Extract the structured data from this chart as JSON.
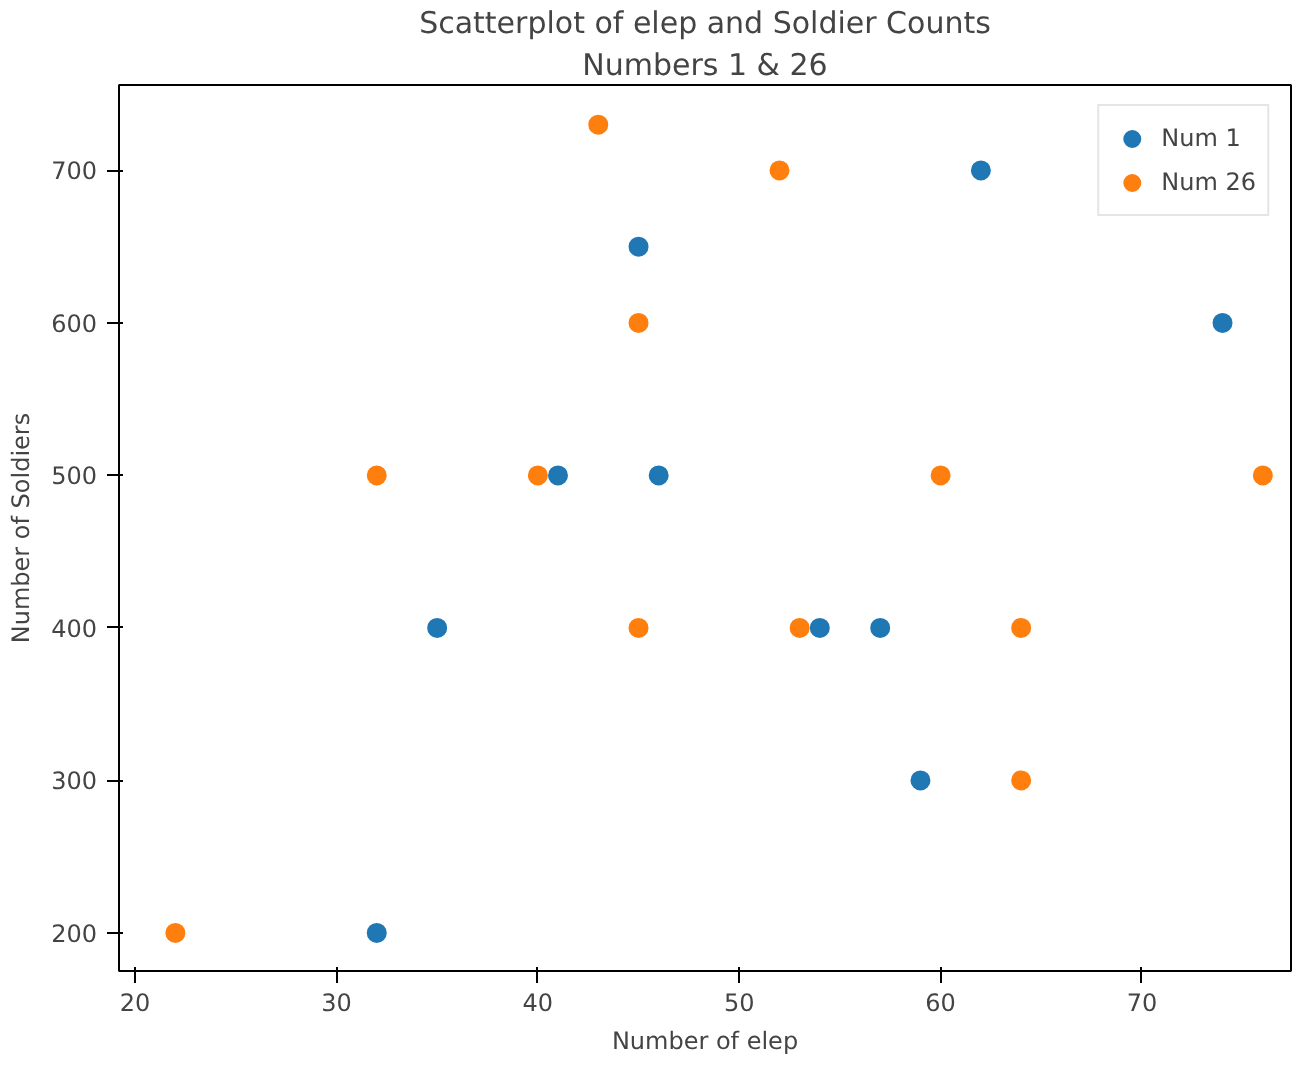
{
  "chart_data": {
    "type": "scatter",
    "title": "Scatterplot of elep and Soldier Counts",
    "subtitle": "Numbers 1 & 26",
    "xlabel": "Number of elep",
    "ylabel": "Number of Soldiers",
    "xlim": [
      19.2,
      77.4
    ],
    "ylim": [
      175,
      756
    ],
    "xticks": [
      20,
      30,
      40,
      50,
      60,
      70
    ],
    "yticks": [
      200,
      300,
      400,
      500,
      600,
      700
    ],
    "grid": false,
    "legend": "top right",
    "marker": "circle",
    "series": [
      {
        "name": "Num 1",
        "color": "#1f77b4",
        "x": [
          32,
          35,
          41,
          46,
          45,
          62,
          74,
          54,
          57,
          59
        ],
        "values": [
          200,
          400,
          500,
          500,
          650,
          700,
          600,
          400,
          400,
          300
        ]
      },
      {
        "name": "Num 26",
        "color": "#ff7f0e",
        "x": [
          22,
          32,
          40,
          43,
          52,
          45,
          45,
          53,
          60,
          76,
          64,
          64
        ],
        "values": [
          200,
          500,
          500,
          730,
          700,
          600,
          400,
          400,
          500,
          500,
          400,
          300
        ]
      }
    ]
  }
}
